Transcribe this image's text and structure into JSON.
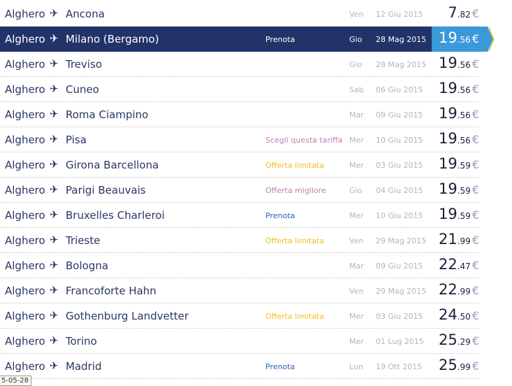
{
  "colors": {
    "selected_bg": "#22336a",
    "selected_price_bg": "#3a9ad9",
    "accent_arrow": "#f0c020",
    "pink": "#c080b0",
    "yellow": "#f0c020",
    "blue": "#3060b0"
  },
  "rows": [
    {
      "origin": "Alghero",
      "dest": "Ancona",
      "label": "",
      "day": "Ven",
      "date": "12 Giu 2015",
      "int": "7",
      "dec": ".82",
      "cur": "€"
    },
    {
      "origin": "Alghero",
      "dest": "Milano (Bergamo)",
      "label": "Prenota",
      "label_color": "#ffffff",
      "day": "Gio",
      "date": "28 Mag 2015",
      "int": "19",
      "dec": ".56",
      "cur": "€",
      "selected": true
    },
    {
      "origin": "Alghero",
      "dest": "Treviso",
      "label": "",
      "day": "Gio",
      "date": "28 Mag 2015",
      "int": "19",
      "dec": ".56",
      "cur": "€"
    },
    {
      "origin": "Alghero",
      "dest": "Cuneo",
      "label": "",
      "day": "Sab",
      "date": "06 Giu 2015",
      "int": "19",
      "dec": ".56",
      "cur": "€"
    },
    {
      "origin": "Alghero",
      "dest": "Roma Ciampino",
      "label": "",
      "day": "Mar",
      "date": "09 Giu 2015",
      "int": "19",
      "dec": ".56",
      "cur": "€"
    },
    {
      "origin": "Alghero",
      "dest": "Pisa",
      "label": "Scegli questa tariffa",
      "label_color": "#c080b0",
      "day": "Mer",
      "date": "10 Giu 2015",
      "int": "19",
      "dec": ".56",
      "cur": "€"
    },
    {
      "origin": "Alghero",
      "dest": "Girona Barcellona",
      "label": "Offerta limitata",
      "label_color": "#f0c020",
      "day": "Mer",
      "date": "03 Giu 2015",
      "int": "19",
      "dec": ".59",
      "cur": "€"
    },
    {
      "origin": "Alghero",
      "dest": "Parigi Beauvais",
      "label": "Offerta migliore",
      "label_color": "#c080b0",
      "day": "Gio",
      "date": "04 Giu 2015",
      "int": "19",
      "dec": ".59",
      "cur": "€"
    },
    {
      "origin": "Alghero",
      "dest": "Bruxelles Charleroi",
      "label": "Prenota",
      "label_color": "#3060b0",
      "day": "Mer",
      "date": "10 Giu 2015",
      "int": "19",
      "dec": ".59",
      "cur": "€"
    },
    {
      "origin": "Alghero",
      "dest": "Trieste",
      "label": "Offerta limitata",
      "label_color": "#f0c020",
      "day": "Ven",
      "date": "29 Mag 2015",
      "int": "21",
      "dec": ".99",
      "cur": "€"
    },
    {
      "origin": "Alghero",
      "dest": "Bologna",
      "label": "",
      "day": "Mar",
      "date": "09 Giu 2015",
      "int": "22",
      "dec": ".47",
      "cur": "€"
    },
    {
      "origin": "Alghero",
      "dest": "Francoforte Hahn",
      "label": "",
      "day": "Ven",
      "date": "29 Mag 2015",
      "int": "22",
      "dec": ".99",
      "cur": "€"
    },
    {
      "origin": "Alghero",
      "dest": "Gothenburg Landvetter",
      "label": "Offerta limitata",
      "label_color": "#f0c020",
      "day": "Mer",
      "date": "03 Giu 2015",
      "int": "24",
      "dec": ".50",
      "cur": "€"
    },
    {
      "origin": "Alghero",
      "dest": "Torino",
      "label": "",
      "day": "Mer",
      "date": "01 Lug 2015",
      "int": "25",
      "dec": ".29",
      "cur": "€"
    },
    {
      "origin": "Alghero",
      "dest": "Madrid",
      "label": "Prenota",
      "label_color": "#3060b0",
      "day": "Lun",
      "date": "19 Ott 2015",
      "int": "25",
      "dec": ".99",
      "cur": "€"
    }
  ],
  "tooltip": "5-05-28"
}
